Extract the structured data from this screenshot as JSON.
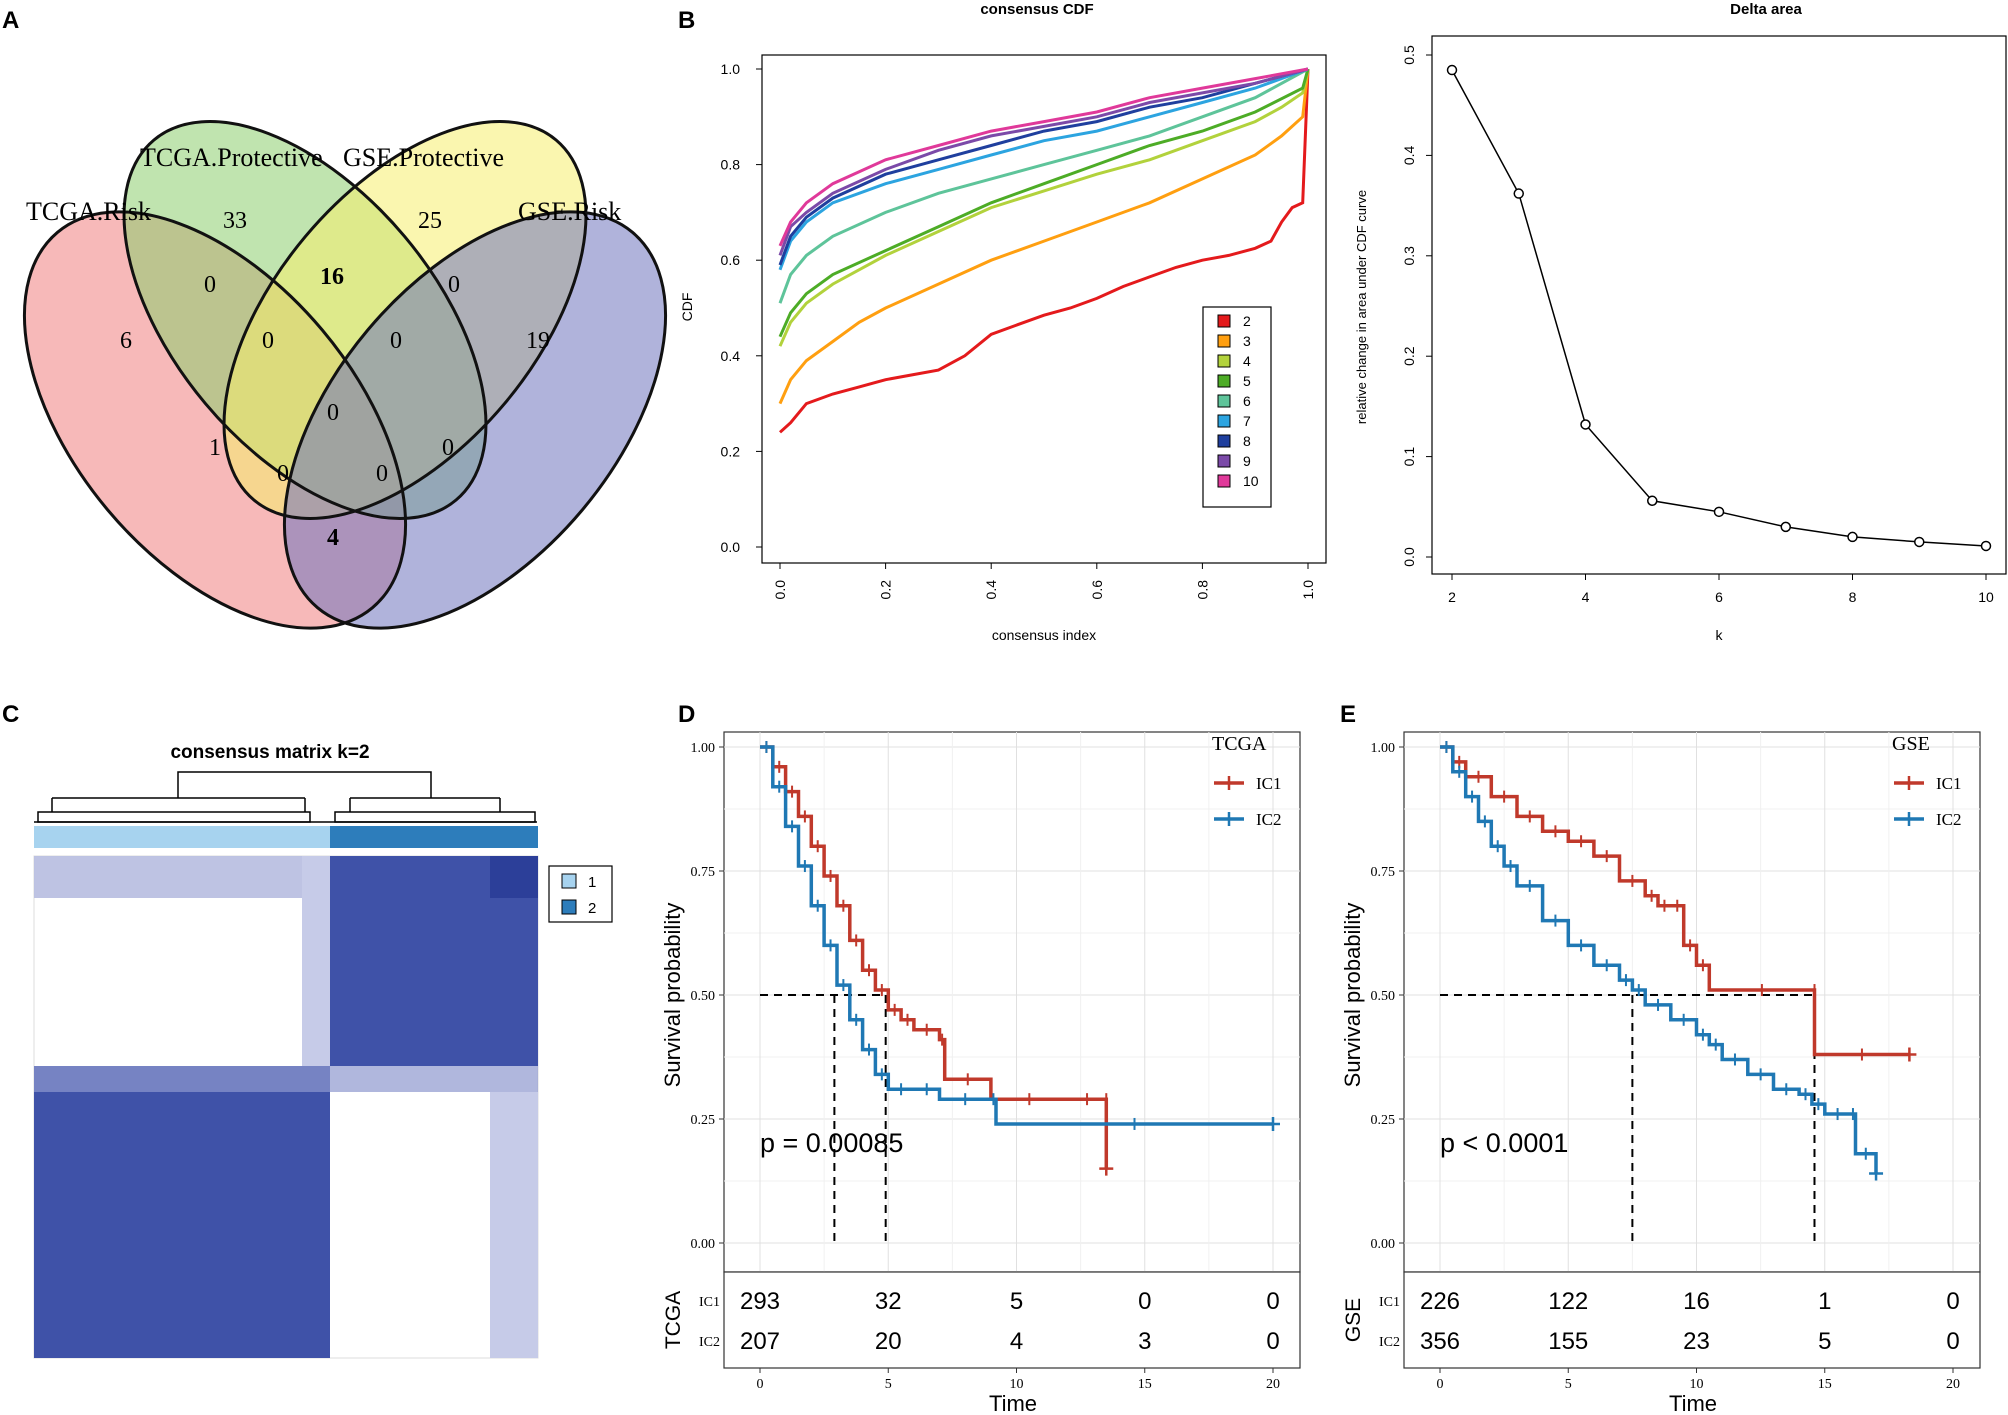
{
  "figure": {
    "panel_labels": [
      "A",
      "B",
      "C",
      "D",
      "E"
    ]
  },
  "chart_data": [
    {
      "panel": "A",
      "type": "venn",
      "sets": [
        "TCGA.Risk",
        "TCGA.Protective",
        "GSE.Protective",
        "GSE.Risk"
      ],
      "colors": [
        "#f08080",
        "#8ccd6e",
        "#f5ee6e",
        "#6f75be"
      ],
      "regions": [
        {
          "sets": "TCGA.Protective",
          "value": "33",
          "bold": false
        },
        {
          "sets": "GSE.Protective",
          "value": "25",
          "bold": false
        },
        {
          "sets": "TCGA.Risk&TCGA.Protective",
          "value": "0",
          "bold": false
        },
        {
          "sets": "TCGA.Protective&GSE.Protective",
          "value": "16",
          "bold": true
        },
        {
          "sets": "GSE.Protective&GSE.Risk",
          "value": "0",
          "bold": false
        },
        {
          "sets": "TCGA.Risk",
          "value": "6",
          "bold": false
        },
        {
          "sets": "TCGA.Risk&TCGA.Protective&GSE.Protective",
          "value": "0",
          "bold": false
        },
        {
          "sets": "TCGA.Protective&GSE.Protective&GSE.Risk",
          "value": "0",
          "bold": false
        },
        {
          "sets": "GSE.Risk",
          "value": "19",
          "bold": false
        },
        {
          "sets": "all",
          "value": "0",
          "bold": false
        },
        {
          "sets": "TCGA.Risk&GSE.Protective",
          "value": "1",
          "bold": false
        },
        {
          "sets": "TCGA.Protective&GSE.Risk",
          "value": "0",
          "bold": false
        },
        {
          "sets": "TCGA.Risk&GSE.Protective&GSE.Risk",
          "value": "0",
          "bold": false
        },
        {
          "sets": "TCGA.Risk&TCGA.Protective&GSE.Risk",
          "value": "0",
          "bold": false
        },
        {
          "sets": "TCGA.Risk&GSE.Risk",
          "value": "4",
          "bold": true
        }
      ]
    },
    {
      "panel": "B-left",
      "type": "line",
      "title": "consensus CDF",
      "xlabel": "consensus index",
      "ylabel": "CDF",
      "xlim": [
        0,
        1
      ],
      "ylim": [
        0,
        1
      ],
      "xticks": [
        "0.0",
        "0.2",
        "0.4",
        "0.6",
        "0.8",
        "1.0"
      ],
      "yticks": [
        "0.0",
        "0.2",
        "0.4",
        "0.6",
        "0.8",
        "1.0"
      ],
      "series": [
        {
          "name": "2",
          "color": "#e41a1c",
          "x": [
            0,
            0.02,
            0.05,
            0.1,
            0.15,
            0.2,
            0.25,
            0.3,
            0.35,
            0.4,
            0.45,
            0.5,
            0.55,
            0.6,
            0.65,
            0.7,
            0.75,
            0.8,
            0.85,
            0.9,
            0.93,
            0.95,
            0.97,
            0.99,
            1.0
          ],
          "y": [
            0.24,
            0.26,
            0.3,
            0.32,
            0.335,
            0.35,
            0.36,
            0.37,
            0.4,
            0.445,
            0.465,
            0.485,
            0.5,
            0.52,
            0.545,
            0.565,
            0.585,
            0.6,
            0.61,
            0.625,
            0.64,
            0.68,
            0.71,
            0.72,
            1.0
          ]
        },
        {
          "name": "3",
          "color": "#ff9f10",
          "x": [
            0,
            0.02,
            0.05,
            0.1,
            0.15,
            0.2,
            0.3,
            0.4,
            0.5,
            0.6,
            0.7,
            0.8,
            0.9,
            0.95,
            0.99,
            1.0
          ],
          "y": [
            0.3,
            0.35,
            0.39,
            0.43,
            0.47,
            0.5,
            0.55,
            0.6,
            0.64,
            0.68,
            0.72,
            0.77,
            0.82,
            0.86,
            0.9,
            1.0
          ]
        },
        {
          "name": "4",
          "color": "#b2d23c",
          "x": [
            0,
            0.02,
            0.05,
            0.1,
            0.2,
            0.3,
            0.4,
            0.5,
            0.6,
            0.7,
            0.8,
            0.9,
            0.95,
            0.99,
            1.0
          ],
          "y": [
            0.42,
            0.47,
            0.51,
            0.55,
            0.61,
            0.66,
            0.71,
            0.745,
            0.78,
            0.81,
            0.85,
            0.89,
            0.92,
            0.95,
            1.0
          ]
        },
        {
          "name": "5",
          "color": "#4dac26",
          "x": [
            0,
            0.02,
            0.05,
            0.1,
            0.2,
            0.3,
            0.4,
            0.5,
            0.6,
            0.7,
            0.8,
            0.9,
            0.99,
            1.0
          ],
          "y": [
            0.44,
            0.49,
            0.53,
            0.57,
            0.62,
            0.67,
            0.72,
            0.76,
            0.8,
            0.84,
            0.87,
            0.91,
            0.96,
            1.0
          ]
        },
        {
          "name": "6",
          "color": "#5ec49a",
          "x": [
            0,
            0.02,
            0.05,
            0.1,
            0.2,
            0.3,
            0.4,
            0.5,
            0.6,
            0.7,
            0.8,
            0.9,
            1.0
          ],
          "y": [
            0.51,
            0.57,
            0.61,
            0.65,
            0.7,
            0.74,
            0.77,
            0.8,
            0.83,
            0.86,
            0.9,
            0.94,
            1.0
          ]
        },
        {
          "name": "7",
          "color": "#2ca4e0",
          "x": [
            0,
            0.02,
            0.05,
            0.1,
            0.2,
            0.3,
            0.4,
            0.5,
            0.6,
            0.7,
            0.8,
            0.9,
            1.0
          ],
          "y": [
            0.58,
            0.64,
            0.68,
            0.72,
            0.76,
            0.79,
            0.82,
            0.85,
            0.87,
            0.9,
            0.93,
            0.96,
            1.0
          ]
        },
        {
          "name": "8",
          "color": "#1f3f9e",
          "x": [
            0,
            0.02,
            0.05,
            0.1,
            0.2,
            0.3,
            0.4,
            0.5,
            0.6,
            0.7,
            0.8,
            0.9,
            1.0
          ],
          "y": [
            0.59,
            0.65,
            0.69,
            0.73,
            0.78,
            0.81,
            0.84,
            0.87,
            0.89,
            0.92,
            0.94,
            0.97,
            1.0
          ]
        },
        {
          "name": "9",
          "color": "#7b4aa8",
          "x": [
            0,
            0.02,
            0.05,
            0.1,
            0.2,
            0.3,
            0.4,
            0.5,
            0.6,
            0.7,
            0.8,
            0.9,
            1.0
          ],
          "y": [
            0.61,
            0.67,
            0.7,
            0.74,
            0.79,
            0.83,
            0.86,
            0.88,
            0.9,
            0.93,
            0.95,
            0.97,
            1.0
          ]
        },
        {
          "name": "10",
          "color": "#e0399a",
          "x": [
            0,
            0.02,
            0.05,
            0.1,
            0.2,
            0.3,
            0.4,
            0.5,
            0.6,
            0.7,
            0.8,
            0.9,
            1.0
          ],
          "y": [
            0.63,
            0.68,
            0.72,
            0.76,
            0.81,
            0.84,
            0.87,
            0.89,
            0.91,
            0.94,
            0.96,
            0.98,
            1.0
          ]
        }
      ],
      "legend": [
        "2",
        "3",
        "4",
        "5",
        "6",
        "7",
        "8",
        "9",
        "10"
      ]
    },
    {
      "panel": "B-right",
      "type": "line",
      "title": "Delta area",
      "xlabel": "k",
      "ylabel": "relative change in area under CDF curve",
      "xlim": [
        2,
        10
      ],
      "ylim": [
        0,
        0.5
      ],
      "xticks": [
        "2",
        "4",
        "6",
        "8",
        "10"
      ],
      "yticks": [
        "0.0",
        "0.1",
        "0.2",
        "0.3",
        "0.4",
        "0.5"
      ],
      "x": [
        2,
        3,
        4,
        5,
        6,
        7,
        8,
        9,
        10
      ],
      "y": [
        0.485,
        0.362,
        0.132,
        0.056,
        0.045,
        0.03,
        0.02,
        0.015,
        0.011
      ]
    },
    {
      "panel": "C",
      "type": "heatmap",
      "title": "consensus matrix k=2",
      "legend": [
        "1",
        "2"
      ],
      "colors": {
        "cluster1": "#a7d3ef",
        "cluster2": "#2d7dbb",
        "high": "#3f52a8",
        "low": "#ffffff"
      }
    },
    {
      "panel": "D",
      "type": "line",
      "subtype": "kaplan-meier",
      "cohort": "TCGA",
      "legend_title": "TCGA",
      "xlabel": "Time",
      "ylabel": "Survival probability",
      "pvalue": "p = 0.00085",
      "xlim": [
        0,
        20
      ],
      "ylim": [
        0,
        1
      ],
      "xticks": [
        "0",
        "5",
        "10",
        "15",
        "20"
      ],
      "yticks": [
        "0.00",
        "0.25",
        "0.50",
        "0.75",
        "1.00"
      ],
      "medians": [
        2.9,
        4.9
      ],
      "series": [
        {
          "name": "IC1",
          "color": "#c0392b",
          "x": [
            0,
            0.5,
            1,
            1.5,
            2,
            2.5,
            3,
            3.5,
            4,
            4.5,
            5,
            5.5,
            6,
            7,
            7.2,
            9,
            12,
            13.5,
            13.5
          ],
          "y": [
            1.0,
            0.96,
            0.91,
            0.86,
            0.8,
            0.74,
            0.68,
            0.61,
            0.55,
            0.51,
            0.47,
            0.45,
            0.43,
            0.41,
            0.33,
            0.29,
            0.29,
            0.29,
            0.15
          ]
        },
        {
          "name": "IC2",
          "color": "#1f78b4",
          "x": [
            0,
            0.5,
            1,
            1.5,
            2,
            2.5,
            3,
            3.5,
            4,
            4.5,
            5,
            6,
            7,
            9,
            9.2,
            20
          ],
          "y": [
            1.0,
            0.92,
            0.84,
            0.76,
            0.68,
            0.6,
            0.52,
            0.45,
            0.39,
            0.34,
            0.31,
            0.31,
            0.29,
            0.29,
            0.24,
            0.24
          ]
        }
      ],
      "risk_table": {
        "label": "TCGA",
        "rows": [
          {
            "name": "IC1",
            "values": [
              "293",
              "32",
              "5",
              "0",
              "0"
            ]
          },
          {
            "name": "IC2",
            "values": [
              "207",
              "20",
              "4",
              "3",
              "0"
            ]
          }
        ]
      }
    },
    {
      "panel": "E",
      "type": "line",
      "subtype": "kaplan-meier",
      "cohort": "GSE",
      "legend_title": "GSE",
      "xlabel": "Time",
      "ylabel": "Survival probability",
      "pvalue": "p < 0.0001",
      "xlim": [
        0,
        20
      ],
      "ylim": [
        0,
        1
      ],
      "xticks": [
        "0",
        "5",
        "10",
        "15",
        "20"
      ],
      "yticks": [
        "0.00",
        "0.25",
        "0.50",
        "0.75",
        "1.00"
      ],
      "medians": [
        7.5,
        14.6
      ],
      "series": [
        {
          "name": "IC1",
          "color": "#c0392b",
          "x": [
            0,
            0.5,
            1,
            2,
            3,
            4,
            5,
            6,
            7,
            8,
            8.5,
            9,
            9.5,
            10,
            10.5,
            14.6,
            14.6,
            18.3
          ],
          "y": [
            1.0,
            0.97,
            0.94,
            0.9,
            0.86,
            0.83,
            0.81,
            0.78,
            0.73,
            0.7,
            0.68,
            0.68,
            0.6,
            0.56,
            0.51,
            0.51,
            0.38,
            0.38
          ]
        },
        {
          "name": "IC2",
          "color": "#1f78b4",
          "x": [
            0,
            0.5,
            1,
            1.5,
            2,
            2.5,
            3,
            4,
            5,
            6,
            7,
            7.5,
            8,
            9,
            10,
            10.5,
            11,
            12,
            13,
            14,
            14.5,
            15,
            16,
            16.2,
            17
          ],
          "y": [
            1.0,
            0.95,
            0.9,
            0.85,
            0.8,
            0.76,
            0.72,
            0.65,
            0.6,
            0.56,
            0.53,
            0.51,
            0.48,
            0.45,
            0.42,
            0.4,
            0.37,
            0.34,
            0.31,
            0.3,
            0.28,
            0.26,
            0.26,
            0.18,
            0.14
          ]
        }
      ],
      "risk_table": {
        "label": "GSE",
        "rows": [
          {
            "name": "IC1",
            "values": [
              "226",
              "122",
              "16",
              "1",
              "0"
            ]
          },
          {
            "name": "IC2",
            "values": [
              "356",
              "155",
              "23",
              "5",
              "0"
            ]
          }
        ]
      }
    }
  ]
}
